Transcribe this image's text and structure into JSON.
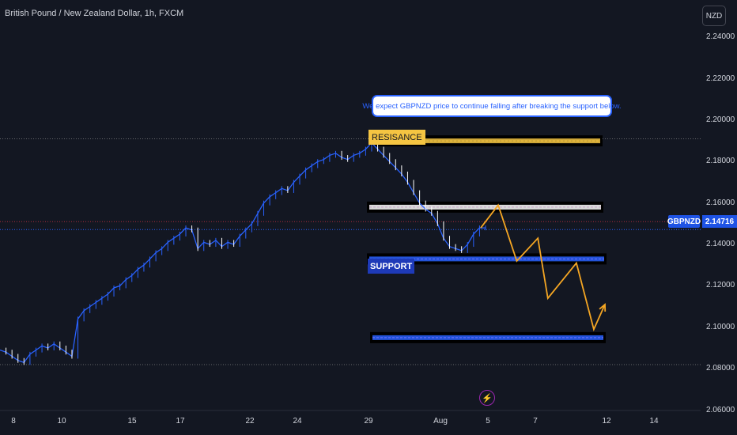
{
  "header": {
    "title": "British Pound / New Zealand Dollar, 1h, FXCM",
    "currency_button": "NZD"
  },
  "price_tag": {
    "symbol": "GBPNZD",
    "value": "2.14716"
  },
  "annotations": {
    "callout": "We expect GBPNZD price to continue falling after breaking the support below.",
    "resistance_label": "RESISANCE",
    "support_label": "SUPPORT"
  },
  "colors": {
    "background": "#131722",
    "candle_up": "#2962ff",
    "candle_down": "#ffffff",
    "resistance": "#f5c542",
    "support": "#2962ff",
    "projection": "#f5a623",
    "price_line": "#2962ff"
  },
  "chart_data": {
    "type": "line",
    "symbol": "GBPNZD",
    "interval": "1h",
    "source": "FXCM",
    "y_axis": {
      "side": "right",
      "ticks": [
        "2.24000",
        "2.22000",
        "2.20000",
        "2.18000",
        "2.16000",
        "2.14000",
        "2.12000",
        "2.10000",
        "2.08000",
        "2.06000"
      ],
      "range": [
        2.048,
        2.258
      ]
    },
    "x_axis": {
      "ticks": [
        "8",
        "10",
        "15",
        "17",
        "22",
        "24",
        "29",
        "Aug",
        "5",
        "7",
        "12",
        "14"
      ]
    },
    "grid": false,
    "price_series": {
      "name": "",
      "values": [
        2.089,
        2.088,
        2.086,
        2.084,
        2.083,
        2.087,
        2.089,
        2.091,
        2.09,
        2.092,
        2.09,
        2.088,
        2.086,
        2.104,
        2.108,
        2.11,
        2.112,
        2.114,
        2.116,
        2.119,
        2.12,
        2.123,
        2.125,
        2.128,
        2.13,
        2.133,
        2.136,
        2.138,
        2.141,
        2.143,
        2.145,
        2.148,
        2.147,
        2.138,
        2.141,
        2.14,
        2.142,
        2.139,
        2.141,
        2.14,
        2.144,
        2.147,
        2.15,
        2.155,
        2.16,
        2.163,
        2.165,
        2.167,
        2.166,
        2.17,
        2.173,
        2.176,
        2.178,
        2.18,
        2.181,
        2.183,
        2.184,
        2.182,
        2.181,
        2.183,
        2.184,
        2.186,
        2.189,
        2.186,
        2.183,
        2.18,
        2.177,
        2.174,
        2.17,
        2.165,
        2.16,
        2.157,
        2.155,
        2.15,
        2.143,
        2.139,
        2.138,
        2.137,
        2.14,
        2.145,
        2.148,
        2.148
      ]
    },
    "current_price": 2.14716,
    "levels": [
      {
        "kind": "resistance",
        "value": 2.19
      },
      {
        "kind": "mid",
        "value": 2.158
      },
      {
        "kind": "support",
        "value": 2.133
      },
      {
        "kind": "target",
        "value": 2.095
      }
    ],
    "dotted_lines": [
      2.191,
      2.151,
      2.082
    ],
    "projection_path": {
      "type": "zigzag",
      "points": [
        [
          0.0,
          2.148
        ],
        [
          0.14,
          2.159
        ],
        [
          0.29,
          2.132
        ],
        [
          0.46,
          2.143
        ],
        [
          0.54,
          2.114
        ],
        [
          0.77,
          2.131
        ],
        [
          0.91,
          2.099
        ],
        [
          1.0,
          2.111
        ]
      ]
    }
  }
}
